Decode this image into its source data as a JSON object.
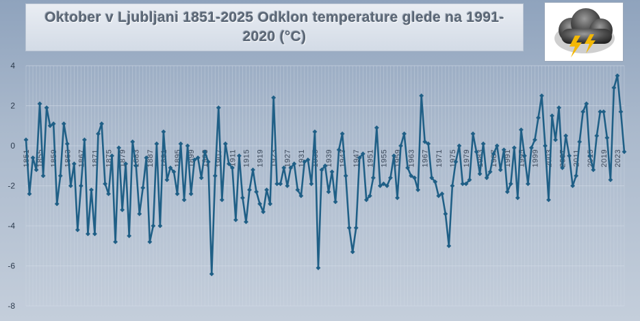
{
  "title": {
    "line1": "Oktober v Ljubljani 1851-2025 Odklon temperature glede na 1991-",
    "line2": "2020 (°C)"
  },
  "logo": {
    "icon": "storm-cloud-lightning-icon",
    "color": "#f2b705"
  },
  "colors": {
    "series": "#1f5f86",
    "background": "#a9b8cb",
    "grid": "#d6dee8"
  },
  "chart_data": {
    "type": "line",
    "title": "Oktober v Ljubljani 1851-2025 Odklon temperature glede na 1991-2020 (°C)",
    "xlabel": "",
    "ylabel": "",
    "ylim": [
      -8,
      4
    ],
    "yticks": [
      4,
      2,
      0,
      -2,
      -4,
      -6,
      -8
    ],
    "x_start": 1851,
    "x_end": 2025,
    "x_tick_labels": [
      "1851",
      "1855",
      "1859",
      "1863",
      "1867",
      "1871",
      "1875",
      "1879",
      "1883",
      "1887",
      "1891",
      "1895",
      "1899",
      "1903",
      "1907",
      "1911",
      "1915",
      "1919",
      "1923",
      "1927",
      "1931",
      "1935",
      "1939",
      "1943",
      "1947",
      "1951",
      "1955",
      "1959",
      "1963",
      "1967",
      "1971",
      "1975",
      "1979",
      "1983",
      "1987",
      "1991",
      "1995",
      "1999",
      "2003",
      "2007",
      "2011",
      "2015",
      "2019",
      "2023"
    ],
    "grid": true,
    "legend": "none",
    "series": [
      {
        "values": [
          0.3,
          -2.4,
          -0.6,
          -1.2,
          2.1,
          -1.5,
          1.9,
          1.0,
          1.1,
          -2.9,
          -1.5,
          1.1,
          0.1,
          -2.0,
          -0.9,
          -4.2,
          -2.0,
          0.3,
          -4.4,
          -2.2,
          -4.4,
          0.6,
          1.1,
          -1.9,
          -2.4,
          -0.5,
          -4.8,
          -0.1,
          -3.2,
          -0.9,
          -4.5,
          0.2,
          -1.0,
          -3.4,
          -2.1,
          -0.6,
          -4.8,
          -4.0,
          0.1,
          -4.0,
          0.7,
          -1.7,
          -1.1,
          -1.3,
          -2.4,
          0.1,
          -2.7,
          0.0,
          -2.4,
          -0.7,
          -0.6,
          -1.6,
          -0.3,
          -0.8,
          -6.4,
          -1.5,
          1.9,
          -2.7,
          0.1,
          -0.9,
          -1.1,
          -3.7,
          -0.5,
          -2.6,
          -3.8,
          -2.2,
          -1.2,
          -2.3,
          -2.9,
          -3.3,
          -2.2,
          -2.9,
          2.4,
          -1.9,
          -1.9,
          -1.1,
          -2.0,
          -1.1,
          -0.9,
          -2.2,
          -2.5,
          -0.8,
          -0.7,
          -1.9,
          0.7,
          -6.1,
          -1.2,
          -1.0,
          -2.3,
          -1.3,
          -2.8,
          -0.2,
          0.6,
          -1.5,
          -4.1,
          -5.3,
          -4.1,
          -0.6,
          -0.4,
          -2.7,
          -2.5,
          -1.6,
          0.9,
          -2.0,
          -1.9,
          -2.0,
          -1.6,
          -0.5,
          -2.6,
          0.0,
          0.6,
          -1.1,
          -1.5,
          -1.6,
          -2.2,
          2.5,
          0.2,
          0.1,
          -1.6,
          -1.8,
          -2.5,
          -2.4,
          -3.4,
          -5.0,
          -2.0,
          -0.8,
          0.0,
          -1.9,
          -1.9,
          -1.7,
          0.6,
          -0.3,
          -1.4,
          0.1,
          -1.6,
          -1.3,
          -0.4,
          0.0,
          -1.2,
          -0.2,
          -2.3,
          -1.9,
          -0.1,
          -2.6,
          0.8,
          -0.5,
          -1.9,
          -0.1,
          0.3,
          1.4,
          2.5,
          0.0,
          -2.7,
          1.5,
          0.3,
          1.9,
          -1.1,
          0.5,
          -0.5,
          -2.0,
          -1.5,
          0.2,
          1.7,
          2.1,
          -0.5,
          -1.2,
          0.5,
          1.7,
          1.7,
          0.4,
          -1.7,
          2.9,
          3.5,
          1.7,
          -0.3
        ]
      }
    ]
  }
}
